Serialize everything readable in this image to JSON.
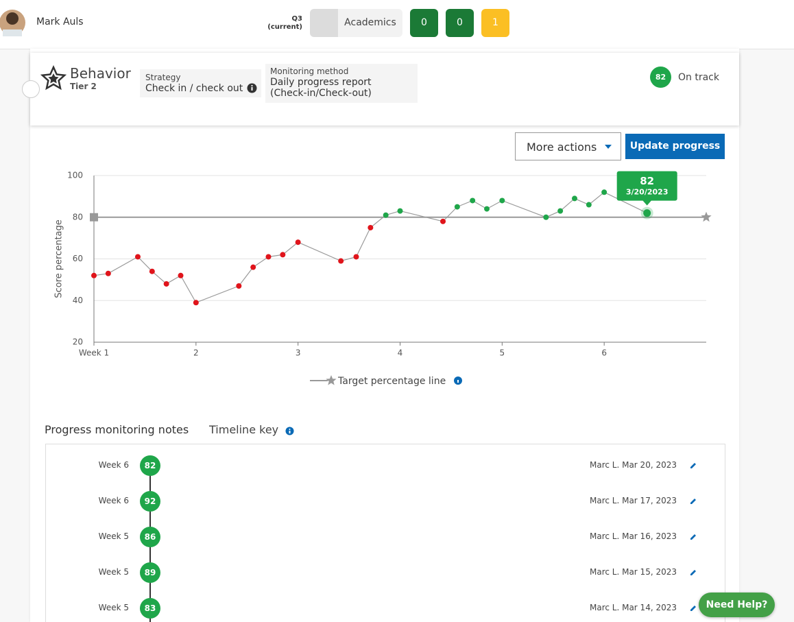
{
  "header": {
    "user_name": "Mark Auls",
    "term": "Q3",
    "term_note": "(current)",
    "tab": "Academics",
    "counts": [
      {
        "value": 0,
        "color": "#1b7a36"
      },
      {
        "value": 0,
        "color": "#1b7a36"
      },
      {
        "value": 1,
        "color": "#fbbf24"
      }
    ]
  },
  "plan": {
    "title": "Behavior",
    "tier": "Tier 2",
    "strategy_label": "Strategy",
    "strategy": "Check in / check out",
    "method_label": "Monitoring method",
    "method": [
      "Daily progress report",
      "(Check-in/Check-out)"
    ],
    "score": 82,
    "status": "On track"
  },
  "actions": {
    "more": "More actions",
    "update": "Update progress"
  },
  "chart_data": {
    "type": "line",
    "y_label": "Score percentage",
    "x": [
      1.0,
      1.14,
      1.43,
      1.57,
      1.71,
      1.85,
      2.0,
      2.42,
      2.56,
      2.71,
      2.85,
      3.0,
      3.42,
      3.57,
      3.71,
      3.86,
      4.0,
      4.42,
      4.56,
      4.71,
      4.85,
      5.0,
      5.43,
      5.57,
      5.71,
      5.85,
      6.0,
      6.42
    ],
    "series": [
      {
        "color": "#9a9a9a",
        "below_color": "#e0141b",
        "above_color": "#1fa64a",
        "values": [
          52,
          53,
          61,
          54,
          48,
          52,
          39,
          47,
          56,
          61,
          62,
          68,
          59,
          61,
          75,
          81,
          83,
          78,
          85,
          88,
          84,
          88,
          80,
          83,
          89,
          86,
          92,
          82
        ]
      }
    ],
    "target": {
      "value": 80,
      "name": "Target percentage line",
      "color": "#999999"
    },
    "tooltip": {
      "date": "3/20/2023",
      "color": "#1fa64a"
    },
    "xlim": [
      1,
      7
    ],
    "xticks": [
      {
        "value": 1,
        "label": "Week 1"
      },
      2,
      3,
      4,
      5,
      6
    ],
    "ylim": [
      20,
      100
    ],
    "yticks": [
      20,
      40,
      60,
      80,
      100
    ],
    "grid": true
  },
  "notes": {
    "title": "Progress monitoring notes",
    "key": "Timeline key",
    "entries": [
      {
        "week": "Week 6",
        "score": 82,
        "by": "Marc L. Mar 20, 2023"
      },
      {
        "week": "Week 6",
        "score": 92,
        "by": "Marc L. Mar 17, 2023"
      },
      {
        "week": "Week 5",
        "score": 86,
        "by": "Marc L. Mar 16, 2023"
      },
      {
        "week": "Week 5",
        "score": 89,
        "by": "Marc L. Mar 15, 2023"
      },
      {
        "week": "Week 5",
        "score": 83,
        "by": "Marc L. Mar 14, 2023"
      }
    ]
  },
  "help": "Need Help?"
}
